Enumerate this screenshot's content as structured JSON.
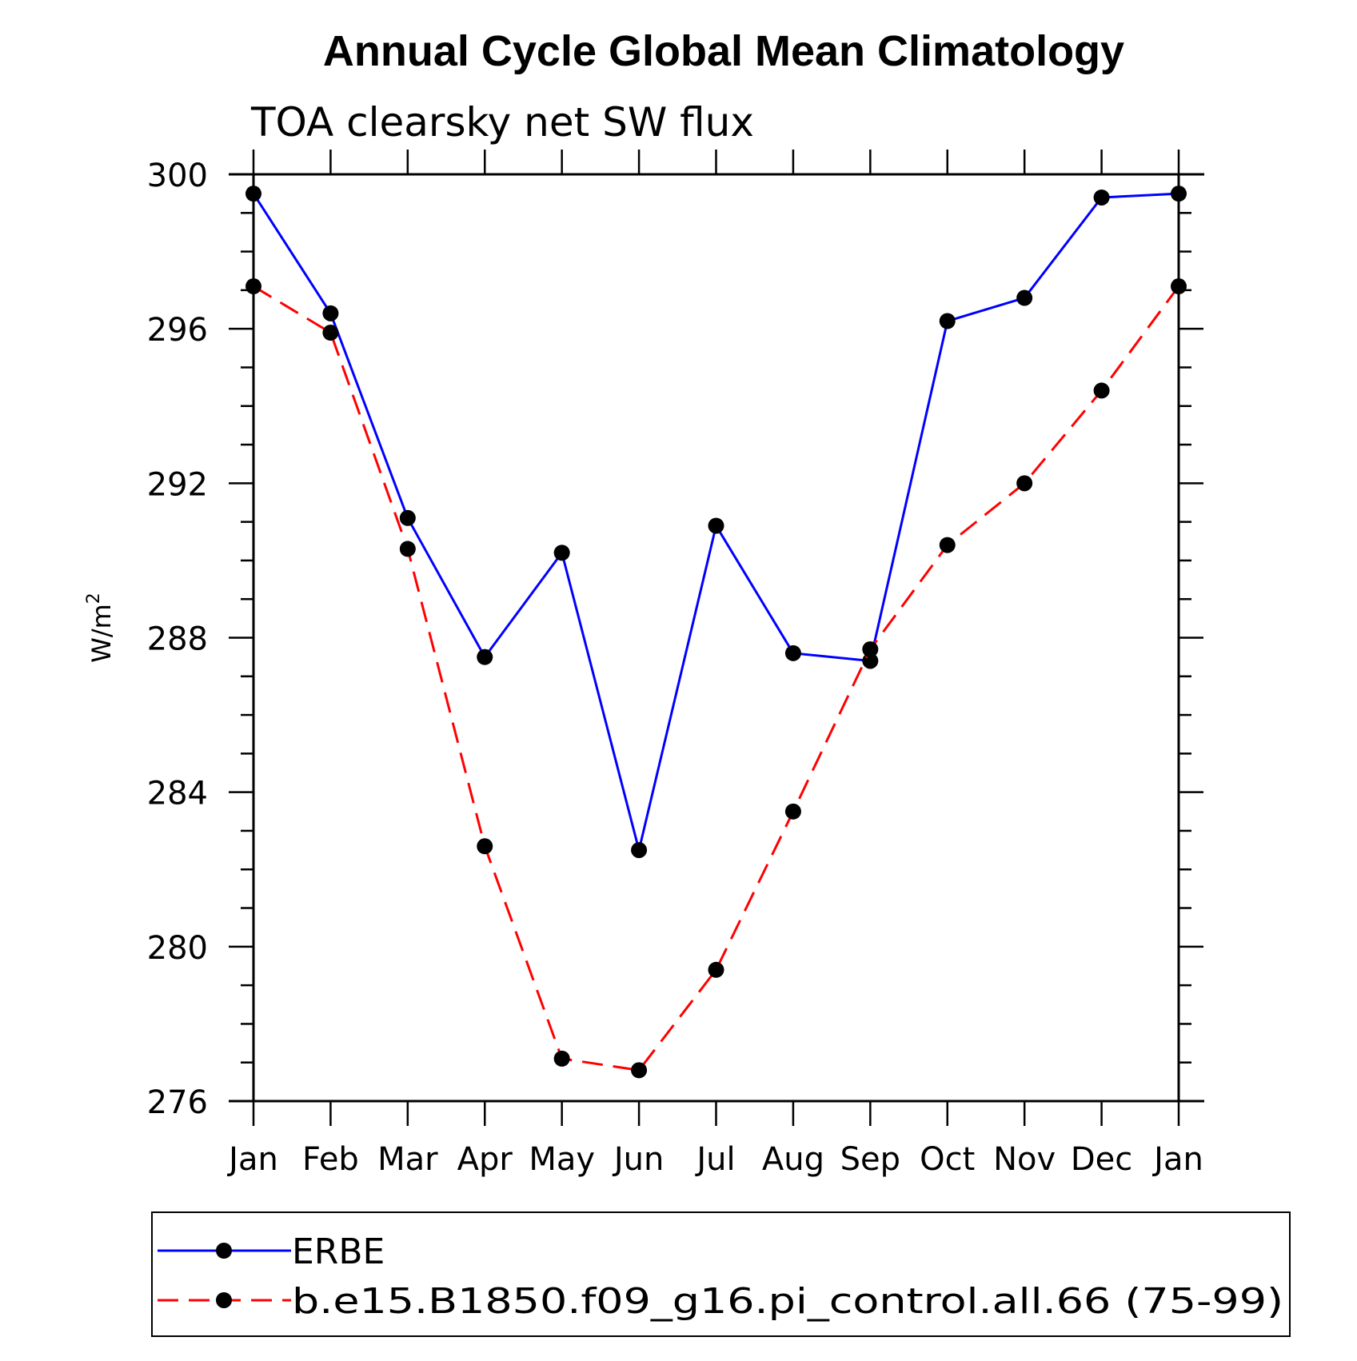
{
  "chart_data": {
    "type": "line",
    "title": "Annual Cycle Global Mean Climatology",
    "subtitle": "TOA clearsky net SW flux",
    "ylabel": "W/m",
    "ylabel_superscript": "2",
    "categories": [
      "Jan",
      "Feb",
      "Mar",
      "Apr",
      "May",
      "Jun",
      "Jul",
      "Aug",
      "Sep",
      "Oct",
      "Nov",
      "Dec",
      "Jan"
    ],
    "ylim": [
      276,
      300
    ],
    "yticks": [
      276,
      280,
      284,
      288,
      292,
      296,
      300
    ],
    "yminor_step": 1,
    "grid": false,
    "legend_position": "bottom",
    "series": [
      {
        "name": "ERBE",
        "color": "#0000ff",
        "line_style": "solid",
        "marker": "circle",
        "values": [
          299.5,
          296.4,
          291.1,
          287.5,
          290.2,
          282.5,
          290.9,
          287.6,
          287.4,
          296.2,
          296.8,
          299.4,
          299.5
        ]
      },
      {
        "name": "b.e15.B1850.f09_g16.pi_control.all.66 (75-99)",
        "color": "#ff0000",
        "line_style": "dashed",
        "marker": "circle",
        "values": [
          297.1,
          295.9,
          290.3,
          282.6,
          277.1,
          276.8,
          279.4,
          283.5,
          287.7,
          290.4,
          292.0,
          294.4,
          297.1
        ]
      }
    ]
  }
}
